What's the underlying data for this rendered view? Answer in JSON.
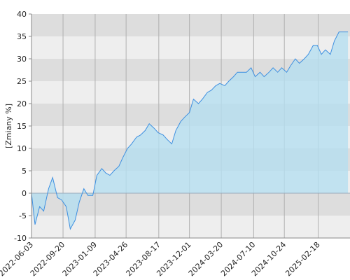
{
  "chart_data": {
    "type": "area",
    "ylabel": "[Zmiany %]",
    "x": [
      "2022-06-03",
      "2022-06-15",
      "2022-07-01",
      "2022-07-15",
      "2022-08-01",
      "2022-08-15",
      "2022-09-01",
      "2022-09-15",
      "2022-10-01",
      "2022-10-15",
      "2022-11-01",
      "2022-11-15",
      "2022-12-01",
      "2022-12-15",
      "2023-01-01",
      "2023-01-15",
      "2023-02-01",
      "2023-02-15",
      "2023-03-01",
      "2023-03-15",
      "2023-04-01",
      "2023-04-15",
      "2023-05-01",
      "2023-05-15",
      "2023-06-01",
      "2023-06-15",
      "2023-07-01",
      "2023-07-15",
      "2023-08-01",
      "2023-08-15",
      "2023-09-01",
      "2023-09-15",
      "2023-10-01",
      "2023-10-15",
      "2023-11-01",
      "2023-11-15",
      "2023-12-01",
      "2023-12-15",
      "2024-01-01",
      "2024-01-15",
      "2024-02-01",
      "2024-02-15",
      "2024-03-01",
      "2024-03-15",
      "2024-04-01",
      "2024-04-15",
      "2024-05-01",
      "2024-05-15",
      "2024-06-01",
      "2024-06-15",
      "2024-07-01",
      "2024-07-15",
      "2024-08-01",
      "2024-08-15",
      "2024-09-01",
      "2024-09-15",
      "2024-10-01",
      "2024-10-15",
      "2024-11-01",
      "2024-11-15",
      "2024-12-01",
      "2024-12-15",
      "2025-01-01",
      "2025-01-15",
      "2025-02-01",
      "2025-02-15",
      "2025-03-01",
      "2025-03-15",
      "2025-04-01",
      "2025-04-15",
      "2025-05-01",
      "2025-05-15",
      "2025-06-01"
    ],
    "values": [
      0,
      -7,
      -3,
      -4,
      1,
      3.5,
      -1,
      -1.5,
      -3,
      -8,
      -6,
      -2,
      1,
      -0.5,
      -0.5,
      4,
      5.5,
      4.5,
      4,
      5,
      6,
      8,
      10,
      11,
      12.5,
      13,
      14,
      15.5,
      14.5,
      13.5,
      13,
      12,
      11,
      14,
      16,
      17,
      18,
      21,
      20,
      21,
      22.5,
      23,
      24,
      24.5,
      24,
      25,
      26,
      27,
      27,
      27,
      28,
      26,
      27,
      26,
      27,
      28,
      27,
      28,
      27,
      28.5,
      30,
      29,
      30,
      31,
      33,
      33,
      31,
      32,
      31,
      34,
      36,
      36,
      36
    ],
    "color": "#3d8fe0",
    "fill": "#b5def0",
    "xlim": [
      "2022-06-03",
      "2025-06-08"
    ],
    "xticks": [
      "2022-06-03",
      "2022-09-20",
      "2023-01-09",
      "2023-04-26",
      "2023-08-17",
      "2023-12-01",
      "2024-03-20",
      "2024-07-10",
      "2024-10-24",
      "2025-02-18"
    ],
    "ylim": [
      -10,
      40
    ],
    "yticks": [
      40,
      35,
      30,
      25,
      20,
      15,
      10,
      5,
      0,
      -5,
      -10
    ]
  }
}
